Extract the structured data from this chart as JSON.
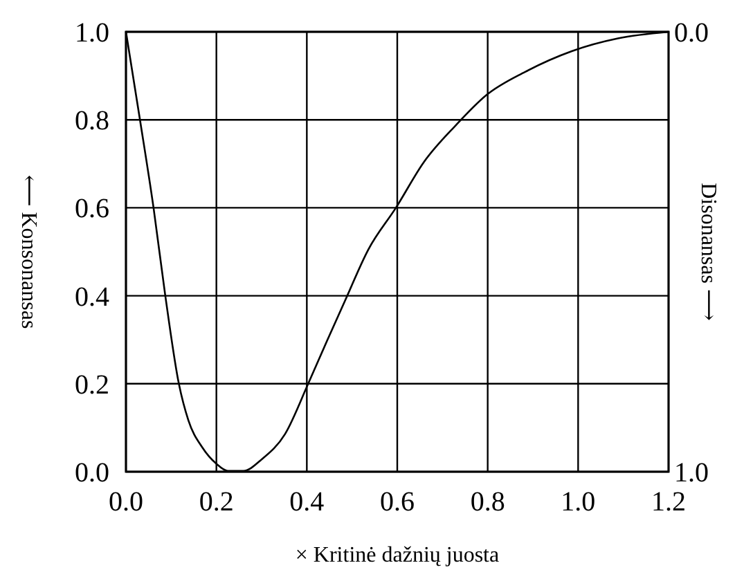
{
  "chart_data": {
    "type": "line",
    "xlabel": "× Kritinė dažnių juosta",
    "ylabel": "⟵ Konsonansas",
    "y2label": "Disonansas ⟶",
    "series": [
      {
        "color": "#000000",
        "x": [
          0,
          0.031,
          0.061,
          0.087,
          0.117,
          0.138,
          0.169,
          0.2,
          0.225,
          0.26,
          0.3,
          0.352,
          0.403,
          0.444,
          0.485,
          0.536,
          0.597,
          0.659,
          0.73,
          0.797,
          0.883,
          0.986,
          1.088,
          1.2
        ],
        "values": [
          1.0,
          0.8,
          0.6,
          0.4,
          0.2,
          0.117,
          0.055,
          0.018,
          0.002,
          0.002,
          0.028,
          0.086,
          0.2,
          0.296,
          0.39,
          0.505,
          0.6,
          0.704,
          0.788,
          0.856,
          0.909,
          0.956,
          0.985,
          1.0
        ]
      }
    ],
    "xlim": [
      0,
      1.2
    ],
    "ylim": [
      0,
      1
    ],
    "y2lim": [
      1,
      0
    ],
    "xticks": [
      {
        "value": 0,
        "label": "0.0"
      },
      {
        "value": 0.2,
        "label": "0.2"
      },
      {
        "value": 0.4,
        "label": "0.4"
      },
      {
        "value": 0.6,
        "label": "0.6"
      },
      {
        "value": 0.8,
        "label": "0.8"
      },
      {
        "value": 1,
        "label": "1.0"
      },
      {
        "value": 1.2,
        "label": "1.2"
      }
    ],
    "yticks": [
      {
        "value": 0,
        "label": "0.0"
      },
      {
        "value": 0.2,
        "label": "0.2"
      },
      {
        "value": 0.4,
        "label": "0.4"
      },
      {
        "value": 0.6,
        "label": "0.6"
      },
      {
        "value": 0.8,
        "label": "0.8"
      },
      {
        "value": 1,
        "label": "1.0"
      }
    ],
    "y2ticks": [
      {
        "value": 0,
        "label": "0.0"
      },
      {
        "value": 1,
        "label": "1.0"
      }
    ],
    "grid": true,
    "marker": "none",
    "line_style": "solid"
  }
}
